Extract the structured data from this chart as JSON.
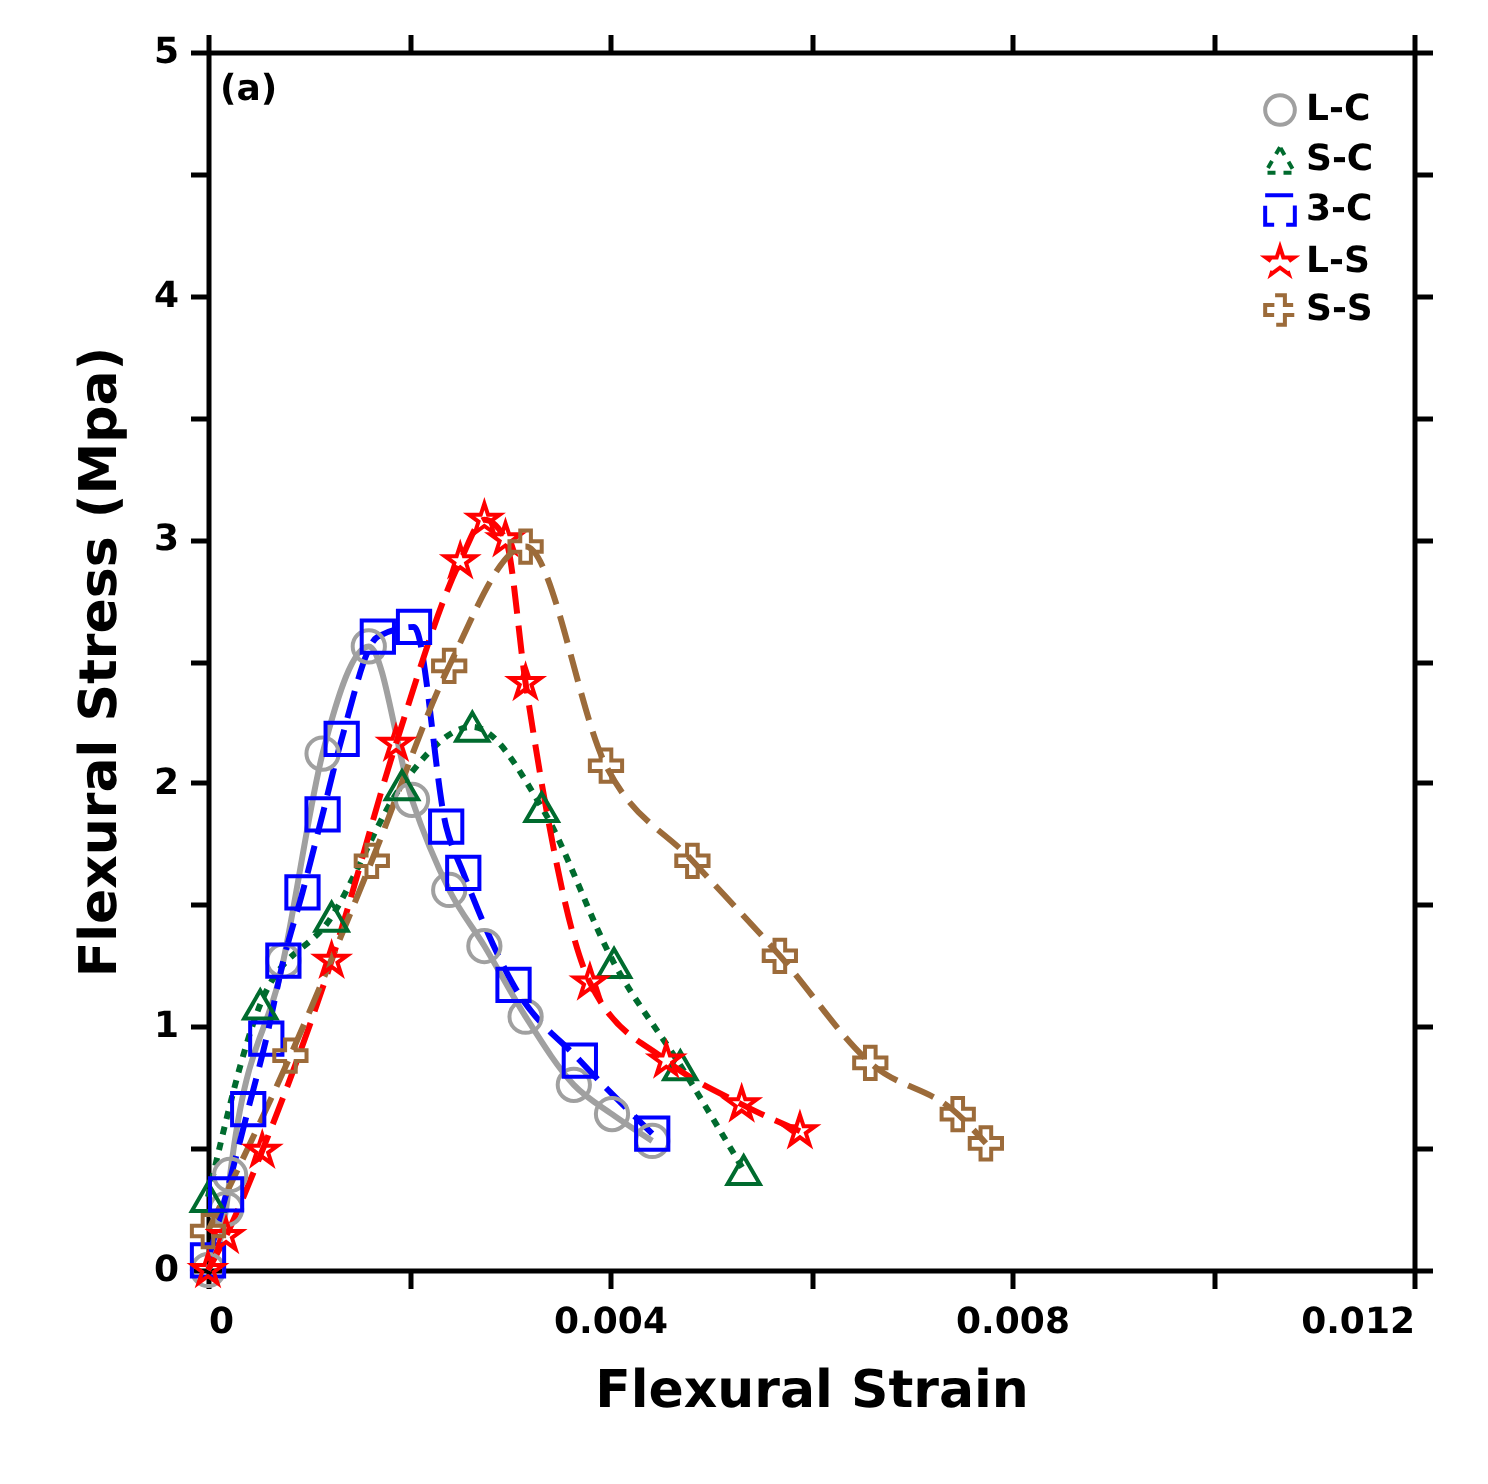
{
  "chart_data": {
    "type": "line",
    "xlabel": "Flexural Strain",
    "ylabel": "Flexural Stress (Mpa)",
    "annotations": [
      "(a)"
    ],
    "xlim": [
      0,
      0.012
    ],
    "ylim": [
      0,
      5
    ],
    "xticks": [
      0,
      {
        "value": 0.002,
        "label": null
      },
      0.004,
      {
        "value": 0.006,
        "label": null
      },
      0.008,
      {
        "value": 0.01,
        "label": null
      },
      0.012
    ],
    "yticks": [
      0,
      {
        "value": 0.5,
        "label": null
      },
      1,
      {
        "value": 1.5,
        "label": null
      },
      2,
      {
        "value": 2.5,
        "label": null
      },
      3,
      {
        "value": 3.5,
        "label": null
      },
      4,
      {
        "value": 4.5,
        "label": null
      },
      5
    ],
    "grid": false,
    "legend": "top right",
    "series": [
      {
        "name": "L-C",
        "color": "#a0a0a0",
        "marker": "circle",
        "line_style": "solid",
        "x": [
          0,
          0.00018,
          0.00022,
          0.00075,
          0.00114,
          0.0016,
          0.00203,
          0.0024,
          0.00275,
          0.00316,
          0.00364,
          0.00402,
          0.00442
        ],
        "values": [
          0,
          0.25,
          0.39,
          1.27,
          2.12,
          2.56,
          1.93,
          1.56,
          1.33,
          1.04,
          0.76,
          0.64,
          0.53
        ]
      },
      {
        "name": "S-C",
        "color": "#006b2e",
        "marker": "triangle",
        "line_style": "dotted",
        "x": [
          0,
          0.00052,
          0.00123,
          0.00193,
          0.00263,
          0.00332,
          0.00404,
          0.0047,
          0.00533
        ],
        "values": [
          0.3,
          1.09,
          1.45,
          1.99,
          2.23,
          1.9,
          1.26,
          0.84,
          0.41
        ]
      },
      {
        "name": "3-C",
        "color": "#0000ff",
        "marker": "square",
        "line_style": "dashed",
        "x": [
          0,
          0.00018,
          0.0004,
          0.00058,
          0.00075,
          0.00094,
          0.00114,
          0.00133,
          0.00169,
          0.00205,
          0.00237,
          0.00254,
          0.00304,
          0.0037,
          0.00442
        ],
        "values": [
          0.04,
          0.31,
          0.66,
          0.95,
          1.27,
          1.55,
          1.87,
          2.18,
          2.6,
          2.64,
          1.82,
          1.63,
          1.17,
          0.86,
          0.56
        ]
      },
      {
        "name": "L-S",
        "color": "#ff0000",
        "marker": "star",
        "line_style": "dashed",
        "x": [
          0,
          0.00018,
          0.00054,
          0.00123,
          0.00187,
          0.00251,
          0.00275,
          0.00296,
          0.00316,
          0.0038,
          0.00456,
          0.00531,
          0.00589
        ],
        "values": [
          0,
          0.14,
          0.49,
          1.27,
          2.16,
          2.91,
          3.08,
          3.0,
          2.41,
          1.18,
          0.86,
          0.68,
          0.57
        ]
      },
      {
        "name": "S-S",
        "color": "#9c6b3a",
        "marker": "cross",
        "line_style": "dashed",
        "x": [
          0,
          0.00082,
          0.00163,
          0.0024,
          0.00316,
          0.00396,
          0.00482,
          0.00569,
          0.00659,
          0.00746,
          0.00774
        ],
        "values": [
          0.16,
          0.88,
          1.68,
          2.48,
          2.97,
          2.07,
          1.68,
          1.29,
          0.85,
          0.64,
          0.52
        ]
      }
    ]
  }
}
